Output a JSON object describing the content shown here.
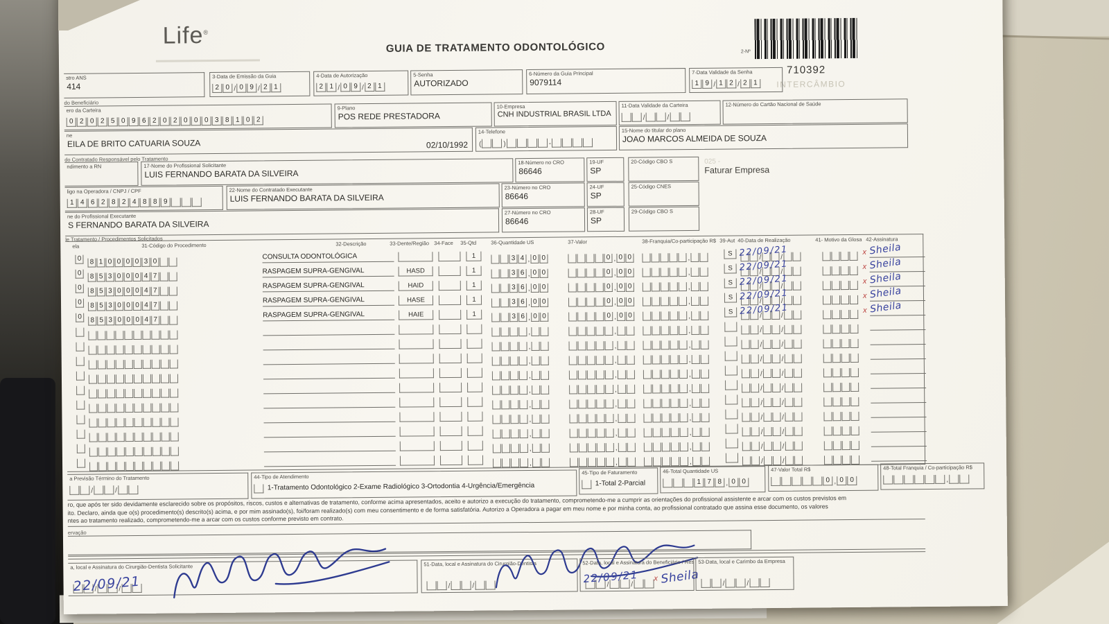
{
  "header": {
    "logo_text": "Life",
    "logo_reg": "®",
    "title": "GUIA DE TRATAMENTO ODONTOLÓGICO",
    "barcode_label": "2-Nº",
    "barcode_number": "710392",
    "watermark": "INTERCÂMBIO"
  },
  "fields": {
    "ans": {
      "label": "stro ANS",
      "value": "414"
    },
    "emissao": {
      "label": "3-Data de Emissão da Guia",
      "cells": [
        "2",
        "0",
        "/",
        "0",
        "9",
        "/",
        "2",
        "1"
      ]
    },
    "autorizacao": {
      "label": "4-Data de Autorização",
      "cells": [
        "2",
        "1",
        "/",
        "0",
        "9",
        "/",
        "2",
        "1"
      ]
    },
    "senha": {
      "label": "5-Senha",
      "value": "AUTORIZADO"
    },
    "guia_principal": {
      "label": "6-Número da Guia Principal",
      "value": "9079114"
    },
    "validade_senha": {
      "label": "7-Data Validade da Senha",
      "cells": [
        "1",
        "9",
        "/",
        "1",
        "2",
        "/",
        "2",
        "1"
      ]
    },
    "section_beneficiario": "do Beneficiário",
    "carteira": {
      "label": "ero da Carteira",
      "cells": [
        "0",
        "2",
        "0",
        "2",
        "5",
        "0",
        "9",
        "6",
        "2",
        "0",
        "2",
        "0",
        "0",
        "0",
        "3",
        "8",
        "1",
        "0",
        "2"
      ]
    },
    "plano": {
      "label": "9-Plano",
      "value": "POS REDE PRESTADORA"
    },
    "empresa": {
      "label": "10-Empresa",
      "value": "CNH INDUSTRIAL BRASIL LTDA"
    },
    "validade_carteira": {
      "label": "11-Data Validade da Carteira",
      "cells": [
        "",
        "",
        "/",
        "",
        "",
        "/",
        "",
        ""
      ]
    },
    "cartao_saude": {
      "label": "12-Número do Cartão Nacional de Saúde",
      "value": ""
    },
    "beneficiario": {
      "label": "ne",
      "value": "EILA DE BRITO CATUARIA SOUZA",
      "date": "02/10/1992"
    },
    "telefone": {
      "label": "14-Telefone",
      "cells": [
        "(",
        "",
        "",
        ")",
        "",
        "",
        "",
        "",
        "-",
        "",
        "",
        "",
        ""
      ]
    },
    "titular": {
      "label": "15-Nome do titular do plano",
      "value": "JOAO MARCOS ALMEIDA DE SOUZA"
    },
    "section_contratado": "do Contratado Responsável pelo Tratamento",
    "rn": {
      "label": "ndimento a RN"
    },
    "solicitante": {
      "label": "17-Nome do Profissional Solicitante",
      "value": "LUIS FERNANDO BARATA DA SILVEIRA"
    },
    "cro18": {
      "label": "18-Número no CRO",
      "value": "86646"
    },
    "uf19": {
      "label": "19-UF",
      "value": "SP"
    },
    "cbo20": {
      "label": "20-Código CBO S",
      "value": ""
    },
    "stamp_code": "025 -",
    "stamp_text": "Faturar Empresa",
    "operadora": {
      "label": "ligo na Operadora / CNPJ / CPF",
      "cells": [
        "1",
        "4",
        "6",
        "2",
        "8",
        "2",
        "4",
        "8",
        "8",
        "9",
        "",
        "",
        ""
      ]
    },
    "executante": {
      "label": "22-Nome do Contratado Executante",
      "value": "LUIS FERNANDO BARATA DA SILVEIRA"
    },
    "cro23": {
      "label": "23-Número no CRO",
      "value": "86646"
    },
    "uf24": {
      "label": "24-UF",
      "value": "SP"
    },
    "cnes25": {
      "label": "25-Código CNES",
      "value": ""
    },
    "prof_executante": {
      "label": "ne do Profissional Executante",
      "value": "S FERNANDO BARATA DA SILVEIRA"
    },
    "cro27": {
      "label": "27-Número no CRO",
      "value": "86646"
    },
    "uf28": {
      "label": "28-UF",
      "value": "SP"
    },
    "cbo29": {
      "label": "29-Código CBO S",
      "value": ""
    },
    "section_tratamento": "le Tratamento / Procedimentos Solicitados"
  },
  "table": {
    "headers": [
      "ela",
      "31-Código do Procedimento",
      "32-Descrição",
      "33-Dente/Região",
      "34-Face",
      "35-Qtd",
      "36-Quantidade US",
      "37-Valor",
      "38-Franquia/Co-participação R$",
      "39-Aut",
      "40-Data de Realização",
      "41- Motivo da Glosa",
      "42-Assinatura"
    ],
    "sig_mark": "x",
    "rows": [
      {
        "prefix": "0",
        "code": [
          "8",
          "1",
          "0",
          "0",
          "0",
          "0",
          "3",
          "0",
          "",
          ""
        ],
        "desc": "CONSULTA ODONTOLÓGICA",
        "dente": "",
        "face": "",
        "qtd": "1",
        "us": [
          "",
          "",
          "3",
          "4",
          ",",
          "0",
          "0"
        ],
        "valor": [
          "",
          "",
          "",
          "",
          "0",
          ",",
          "0",
          "0"
        ],
        "franquia": [
          "",
          "",
          "",
          "",
          "",
          ",",
          "",
          ""
        ],
        "aut": "S",
        "data": "22/09/21",
        "glosa": [
          "",
          "",
          "",
          ""
        ],
        "sig": "Sheila"
      },
      {
        "prefix": "0",
        "code": [
          "8",
          "5",
          "3",
          "0",
          "0",
          "0",
          "4",
          "7",
          "",
          ""
        ],
        "desc": "RASPAGEM SUPRA-GENGIVAL",
        "dente": "HASD",
        "face": "",
        "qtd": "1",
        "us": [
          "",
          "",
          "3",
          "6",
          ",",
          "0",
          "0"
        ],
        "valor": [
          "",
          "",
          "",
          "",
          "0",
          ",",
          "0",
          "0"
        ],
        "franquia": [
          "",
          "",
          "",
          "",
          "",
          ",",
          "",
          ""
        ],
        "aut": "S",
        "data": "22/09/21",
        "glosa": [
          "",
          "",
          "",
          ""
        ],
        "sig": "Sheila"
      },
      {
        "prefix": "0",
        "code": [
          "8",
          "5",
          "3",
          "0",
          "0",
          "0",
          "4",
          "7",
          "",
          ""
        ],
        "desc": "RASPAGEM SUPRA-GENGIVAL",
        "dente": "HAID",
        "face": "",
        "qtd": "1",
        "us": [
          "",
          "",
          "3",
          "6",
          ",",
          "0",
          "0"
        ],
        "valor": [
          "",
          "",
          "",
          "",
          "0",
          ",",
          "0",
          "0"
        ],
        "franquia": [
          "",
          "",
          "",
          "",
          "",
          ",",
          "",
          ""
        ],
        "aut": "S",
        "data": "22/09/21",
        "glosa": [
          "",
          "",
          "",
          ""
        ],
        "sig": "Sheila"
      },
      {
        "prefix": "0",
        "code": [
          "8",
          "5",
          "3",
          "0",
          "0",
          "0",
          "4",
          "7",
          "",
          ""
        ],
        "desc": "RASPAGEM SUPRA-GENGIVAL",
        "dente": "HASE",
        "face": "",
        "qtd": "1",
        "us": [
          "",
          "",
          "3",
          "6",
          ",",
          "0",
          "0"
        ],
        "valor": [
          "",
          "",
          "",
          "",
          "0",
          ",",
          "0",
          "0"
        ],
        "franquia": [
          "",
          "",
          "",
          "",
          "",
          ",",
          "",
          ""
        ],
        "aut": "S",
        "data": "22/09/21",
        "glosa": [
          "",
          "",
          "",
          ""
        ],
        "sig": "Sheila"
      },
      {
        "prefix": "0",
        "code": [
          "8",
          "5",
          "3",
          "0",
          "0",
          "0",
          "4",
          "7",
          "",
          ""
        ],
        "desc": "RASPAGEM SUPRA-GENGIVAL",
        "dente": "HAIE",
        "face": "",
        "qtd": "1",
        "us": [
          "",
          "",
          "3",
          "6",
          ",",
          "0",
          "0"
        ],
        "valor": [
          "",
          "",
          "",
          "",
          "0",
          ",",
          "0",
          "0"
        ],
        "franquia": [
          "",
          "",
          "",
          "",
          "",
          ",",
          "",
          ""
        ],
        "aut": "S",
        "data": "22/09/21",
        "glosa": [
          "",
          "",
          "",
          ""
        ],
        "sig": "Sheila"
      }
    ],
    "empty_row_template": {
      "prefix": "",
      "code": [
        "",
        "",
        "",
        "",
        "",
        "",
        "",
        "",
        "",
        ""
      ],
      "desc": "",
      "dente": "",
      "face": "",
      "qtd": "",
      "us": [
        "",
        "",
        "",
        "",
        ",",
        "",
        ""
      ],
      "valor": [
        "",
        "",
        "",
        "",
        "",
        ",",
        "",
        ""
      ],
      "franquia": [
        "",
        "",
        "",
        "",
        "",
        ",",
        "",
        ""
      ],
      "aut": "",
      "data": "",
      "glosa": [
        "",
        "",
        "",
        ""
      ],
      "sig": ""
    },
    "empty_rows": 10
  },
  "footer": {
    "previsao": {
      "label": "a Previsão Término do Tratamento",
      "cells": [
        "",
        "",
        "/",
        "",
        "",
        "/",
        "",
        ""
      ]
    },
    "tipo_atendimento": {
      "label": "44-Tipo de Atendimento",
      "options": "1-Tratamento Odontológico  2-Exame Radiológico  3-Ortodontia  4-Urgência/Emergência"
    },
    "tipo_faturamento": {
      "label": "45-Tipo de Faturamento",
      "options": "1-Total  2-Parcial"
    },
    "total_us": {
      "label": "46-Total Quantidade US",
      "cells": [
        "",
        "",
        "",
        "1",
        "7",
        "8",
        ",",
        "0",
        "0"
      ]
    },
    "valor_total": {
      "label": "47-Valor Total R$",
      "cells": [
        "",
        "",
        "",
        "",
        "",
        "0",
        ",",
        "0",
        "0"
      ]
    },
    "total_franquia": {
      "label": "48-Total Franquia / Co-participação R$",
      "cells": [
        "",
        "",
        "",
        "",
        "",
        "",
        ",",
        "",
        ""
      ]
    },
    "declaration": [
      "ro, que após ter sido devidamente esclarecido sobre os propósitos, riscos, custos e alternativas de tratamento, conforme acima apresentados, aceito e autorizo a execução do tratamento, comprometendo-me a cumprir as orientações do profissional assistente e arcar com os custos previstos em",
      "ito. Declaro, ainda que o(s) procedimento(s) descrito(s) acima, e por mim assinado(s), foi/foram realizado(s) com meu consentimento e de forma satisfatória. Autorizo a Operadora a pagar em meu nome e por minha conta, ao profissional contratado que assina esse documento, os valores",
      "ntes ao tratamento realizado, comprometendo-me a arcar com os custos conforme previsto em contrato."
    ],
    "observacao_label": "ervação",
    "sig50": {
      "label": "a, local e Assinatura do Cirurgião-Dentista Solicitante",
      "date": "22/09/21",
      "cells": [
        "",
        "",
        "/",
        "",
        "",
        "/",
        "",
        ""
      ]
    },
    "sig51": {
      "label": "51-Data, local e Assinatura do Cirurgião-Dentista",
      "cells": [
        "",
        "",
        "/",
        "",
        "",
        "/",
        "",
        ""
      ]
    },
    "sig52": {
      "label": "52-Data, local e Assinatura do Beneficiário / Responsável",
      "date": "22/09/21",
      "sig": "Sheila",
      "cells": [
        "",
        "",
        "/",
        "",
        "",
        "/",
        "",
        ""
      ]
    },
    "sig53": {
      "label": "53-Data, local e Carimbo da Empresa",
      "cells": [
        "",
        "",
        "/",
        "",
        "",
        "/",
        "",
        ""
      ]
    }
  }
}
